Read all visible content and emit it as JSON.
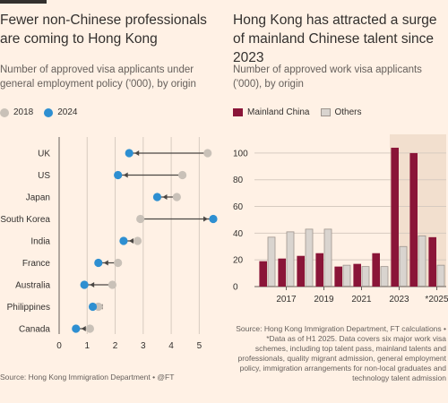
{
  "left": {
    "title": "Fewer non-Chinese professionals are coming to Hong Kong",
    "subtitle": "Number of approved visa applicants under general employment policy ('000), by origin",
    "legend": [
      {
        "label": "2018",
        "color": "#C9C1B8"
      },
      {
        "label": "2024",
        "color": "#2E8FD1"
      }
    ],
    "source": "Source: Hong Kong Immigration Department • @FT"
  },
  "right": {
    "title": "Hong Kong has attracted a surge of mainland Chinese talent since 2023",
    "subtitle": "Number of approved work visa applicants ('000), by origin",
    "legend": [
      {
        "label": "Mainland China",
        "color": "#8A1538"
      },
      {
        "label": "Others",
        "color": "#D9D4CF"
      }
    ],
    "source": "Source: Hong Kong Immigration Department, FT calculations • *Data as of H1 2025. Data covers six major work visa schemes, including top talent pass, mainland talents and professionals, quality migrant admission, general employment policy, immigration arrangements for non-local graduates and technology talent admission"
  },
  "chart_data": [
    {
      "type": "scatter",
      "categories": [
        "UK",
        "US",
        "Japan",
        "South Korea",
        "India",
        "France",
        "Australia",
        "Philippines",
        "Canada"
      ],
      "series": [
        {
          "name": "2018",
          "values": [
            5.3,
            4.4,
            4.2,
            2.9,
            2.8,
            2.1,
            1.9,
            1.4,
            1.1
          ]
        },
        {
          "name": "2024",
          "values": [
            2.5,
            2.1,
            3.5,
            5.5,
            2.3,
            1.4,
            0.9,
            1.2,
            0.6
          ]
        }
      ],
      "xlim": [
        0,
        5.5
      ],
      "xticks": [
        "0",
        "1",
        "2",
        "3",
        "4",
        "5"
      ],
      "grid": true
    },
    {
      "type": "bar",
      "categories": [
        "2016",
        "2017",
        "2018",
        "2019",
        "2020",
        "2021",
        "2022",
        "2023",
        "2024",
        "*2025"
      ],
      "xticks": [
        "2017",
        "2019",
        "2021",
        "2023",
        "*2025"
      ],
      "series": [
        {
          "name": "Mainland China",
          "values": [
            19,
            21,
            23,
            25,
            15,
            17,
            25,
            104,
            100,
            37
          ]
        },
        {
          "name": "Others",
          "values": [
            37,
            41,
            43,
            43,
            16,
            15,
            15,
            30,
            38,
            16
          ]
        }
      ],
      "ylim": [
        0,
        110
      ],
      "yticks": [
        "0",
        "20",
        "40",
        "60",
        "80",
        "100"
      ],
      "highlight_categories": [
        "2023",
        "2024",
        "*2025"
      ],
      "grid": true
    }
  ]
}
